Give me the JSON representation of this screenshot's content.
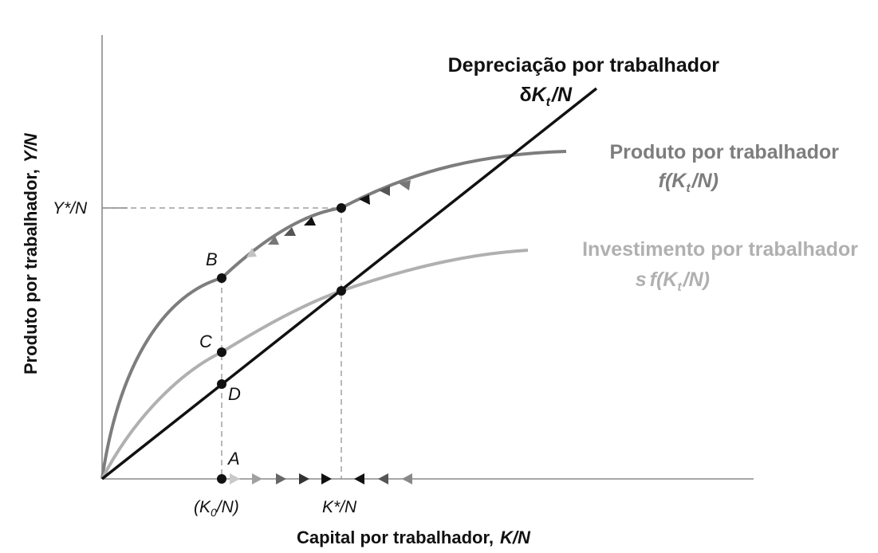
{
  "y_axis": {
    "label": "Produto por trabalhador,",
    "label_var": "Y/N"
  },
  "x_axis": {
    "label": "Capital por trabalhador,",
    "label_var": "K/N"
  },
  "ticks": {
    "y_star": "Y*/N",
    "k0_open": "(K",
    "k0_sub": "0",
    "k0_close": "/N)",
    "k_star": "K*/N"
  },
  "curves": {
    "depreciation": {
      "title": "Depreciação por trabalhador",
      "delta": "δ",
      "k": "K",
      "sub": "t",
      "rest": "/N",
      "color": "#111111"
    },
    "output": {
      "title": "Produto por trabalhador",
      "f": "f(K",
      "sub": "t",
      "rest": "/N)",
      "color": "#7d7d7d"
    },
    "investment": {
      "title": "Investimento por trabalhador",
      "s": "s",
      "f": "f(K",
      "sub": "t",
      "rest": "/N)",
      "color": "#b0b0b0"
    }
  },
  "points": {
    "A": "A",
    "B": "B",
    "C": "C",
    "D": "D"
  }
}
